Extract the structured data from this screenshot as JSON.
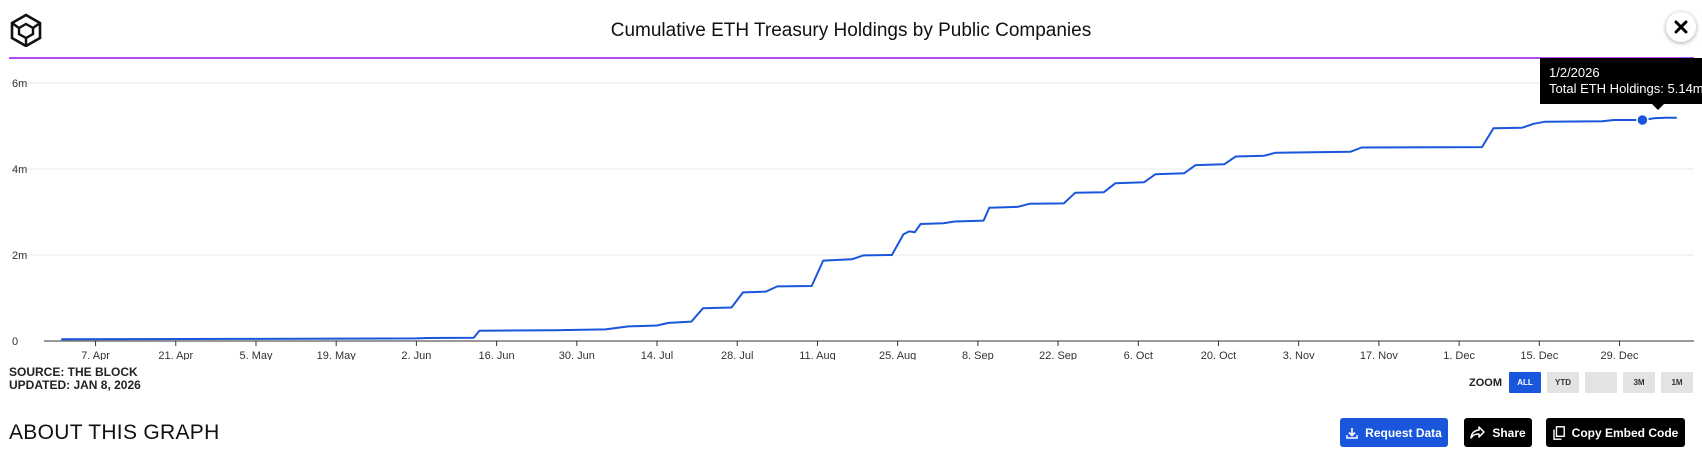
{
  "header": {
    "title": "Cumulative ETH Treasury Holdings by Public Companies",
    "logo_icon": "the-block-cube-logo",
    "close_icon": "close-icon",
    "accent_color": "#b44af2"
  },
  "chart_data": {
    "type": "line",
    "title": "Cumulative ETH Treasury Holdings by Public Companies",
    "xlabel": "",
    "ylabel": "",
    "y_tick_labels": [
      "0",
      "2m",
      "4m",
      "6m"
    ],
    "y_ticks": [
      0,
      2000000,
      4000000,
      6000000
    ],
    "ylim": [
      0,
      6000000
    ],
    "xlim": [
      "2025-03-29",
      "2026-01-11"
    ],
    "x_tick_labels": [
      "7. Apr",
      "21. Apr",
      "5. May",
      "19. May",
      "2. Jun",
      "16. Jun",
      "30. Jun",
      "14. Jul",
      "28. Jul",
      "11. Aug",
      "25. Aug",
      "8. Sep",
      "22. Sep",
      "6. Oct",
      "20. Oct",
      "3. Nov",
      "17. Nov",
      "1. Dec",
      "15. Dec",
      "29. Dec"
    ],
    "x_ticks": [
      "2025-04-07",
      "2025-04-21",
      "2025-05-05",
      "2025-05-19",
      "2025-06-02",
      "2025-06-16",
      "2025-06-30",
      "2025-07-14",
      "2025-07-28",
      "2025-08-11",
      "2025-08-25",
      "2025-09-08",
      "2025-09-22",
      "2025-10-06",
      "2025-10-20",
      "2025-11-03",
      "2025-11-17",
      "2025-12-01",
      "2025-12-15",
      "2025-12-29"
    ],
    "grid": true,
    "legend": "none",
    "series": [
      {
        "color": "#1a56db",
        "points": [
          [
            "2025-04-01",
            40000
          ],
          [
            "2025-04-15",
            45000
          ],
          [
            "2025-05-01",
            50000
          ],
          [
            "2025-05-20",
            55000
          ],
          [
            "2025-06-02",
            60000
          ],
          [
            "2025-06-04",
            70000
          ],
          [
            "2025-06-12",
            75000
          ],
          [
            "2025-06-13",
            240000
          ],
          [
            "2025-06-26",
            250000
          ],
          [
            "2025-07-05",
            270000
          ],
          [
            "2025-07-09",
            340000
          ],
          [
            "2025-07-14",
            360000
          ],
          [
            "2025-07-16",
            420000
          ],
          [
            "2025-07-20",
            450000
          ],
          [
            "2025-07-22",
            760000
          ],
          [
            "2025-07-27",
            780000
          ],
          [
            "2025-07-29",
            1130000
          ],
          [
            "2025-08-02",
            1150000
          ],
          [
            "2025-08-04",
            1270000
          ],
          [
            "2025-08-10",
            1280000
          ],
          [
            "2025-08-12",
            1870000
          ],
          [
            "2025-08-17",
            1900000
          ],
          [
            "2025-08-19",
            1990000
          ],
          [
            "2025-08-24",
            2000000
          ],
          [
            "2025-08-26",
            2480000
          ],
          [
            "2025-08-27",
            2550000
          ],
          [
            "2025-08-28",
            2530000
          ],
          [
            "2025-08-29",
            2720000
          ],
          [
            "2025-09-02",
            2740000
          ],
          [
            "2025-09-04",
            2780000
          ],
          [
            "2025-09-09",
            2800000
          ],
          [
            "2025-09-10",
            3100000
          ],
          [
            "2025-09-15",
            3120000
          ],
          [
            "2025-09-17",
            3190000
          ],
          [
            "2025-09-23",
            3200000
          ],
          [
            "2025-09-25",
            3450000
          ],
          [
            "2025-09-30",
            3460000
          ],
          [
            "2025-10-02",
            3670000
          ],
          [
            "2025-10-07",
            3690000
          ],
          [
            "2025-10-09",
            3880000
          ],
          [
            "2025-10-14",
            3900000
          ],
          [
            "2025-10-16",
            4090000
          ],
          [
            "2025-10-21",
            4110000
          ],
          [
            "2025-10-23",
            4290000
          ],
          [
            "2025-10-28",
            4310000
          ],
          [
            "2025-10-30",
            4380000
          ],
          [
            "2025-11-12",
            4400000
          ],
          [
            "2025-11-14",
            4500000
          ],
          [
            "2025-12-05",
            4510000
          ],
          [
            "2025-12-07",
            4950000
          ],
          [
            "2025-12-12",
            4960000
          ],
          [
            "2025-12-14",
            5050000
          ],
          [
            "2025-12-16",
            5100000
          ],
          [
            "2025-12-26",
            5110000
          ],
          [
            "2025-12-28",
            5140000
          ],
          [
            "2026-01-02",
            5140000
          ],
          [
            "2026-01-04",
            5180000
          ],
          [
            "2026-01-06",
            5190000
          ],
          [
            "2026-01-08",
            5190000
          ]
        ]
      }
    ],
    "highlight": {
      "x": "2026-01-02",
      "y": 5140000
    }
  },
  "tooltip": {
    "date": "1/2/2026",
    "text": "Total ETH Holdings: 5.14m"
  },
  "footer": {
    "source": "SOURCE: THE BLOCK",
    "updated": "UPDATED: JAN 8, 2026"
  },
  "zoom": {
    "label": "ZOOM",
    "options": [
      "ALL",
      "YTD",
      "",
      "3M",
      "1M"
    ],
    "selected": "ALL"
  },
  "about": {
    "heading": "ABOUT THIS GRAPH"
  },
  "actions": {
    "request_label": "Request Data",
    "request_icon": "download-icon",
    "share_label": "Share",
    "share_icon": "share-arrow-icon",
    "embed_label": "Copy Embed Code",
    "embed_icon": "copy-icon"
  }
}
